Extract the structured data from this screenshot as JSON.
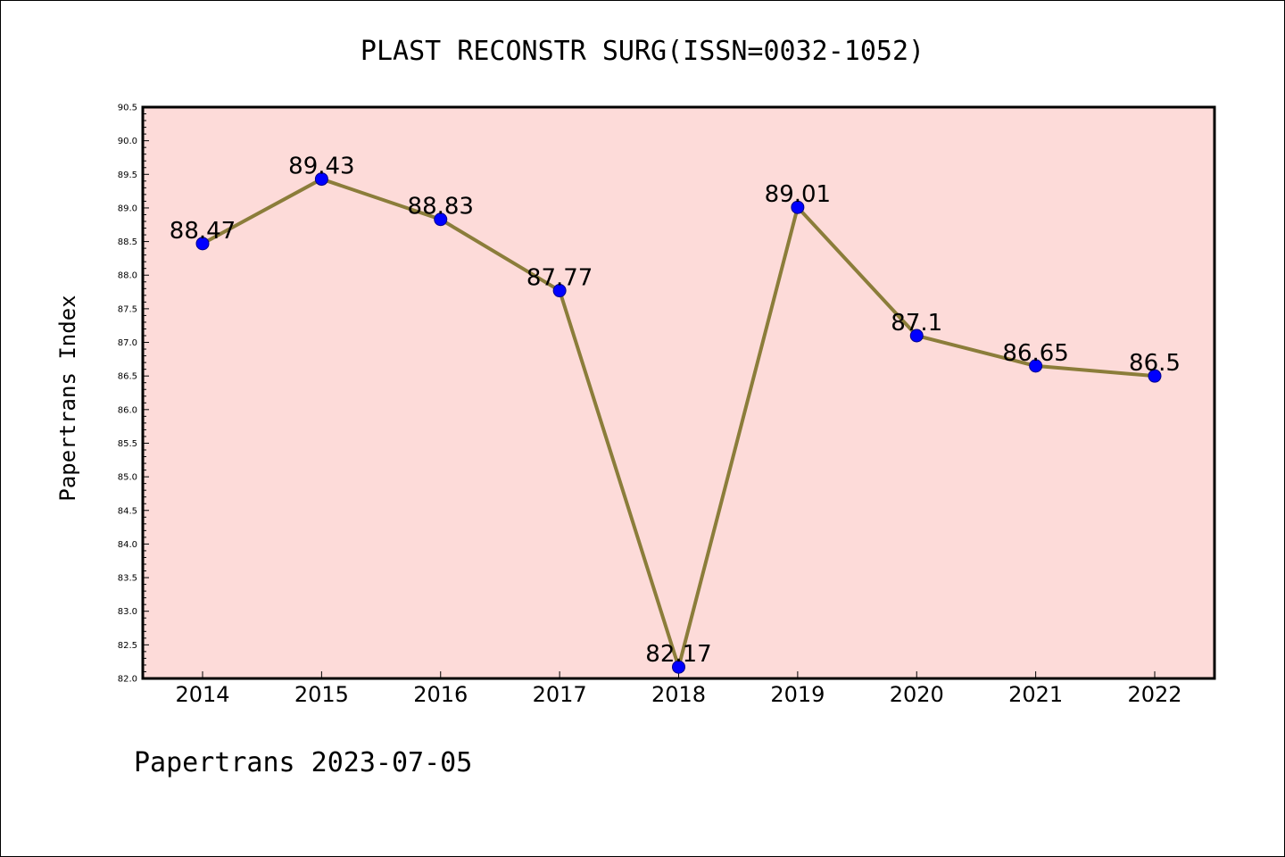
{
  "chart_data": {
    "type": "line",
    "title": "PLAST RECONSTR SURG(ISSN=0032-1052)",
    "ylabel": "Papertrans Index",
    "xlabel": "",
    "footer": "Papertrans 2023-07-05",
    "categories": [
      "2014",
      "2015",
      "2016",
      "2017",
      "2018",
      "2019",
      "2020",
      "2021",
      "2022"
    ],
    "values": [
      88.47,
      89.43,
      88.83,
      87.77,
      82.17,
      89.01,
      87.1,
      86.65,
      86.5
    ],
    "value_labels": [
      "88.47",
      "89.43",
      "88.83",
      "87.77",
      "82.17",
      "89.01",
      "87.1",
      "86.65",
      "86.5"
    ],
    "ylim": [
      82.0,
      90.5
    ],
    "yticks": [
      "82.0",
      "82.5",
      "83.0",
      "83.5",
      "84.0",
      "84.5",
      "85.0",
      "85.5",
      "86.0",
      "86.5",
      "87.0",
      "87.5",
      "88.0",
      "88.5",
      "89.0",
      "89.5",
      "90.0",
      "90.5"
    ],
    "grid": false,
    "colors": {
      "plot_background": "#fddbd9",
      "line": "#8b7d3a",
      "marker": "#0000ff"
    }
  }
}
